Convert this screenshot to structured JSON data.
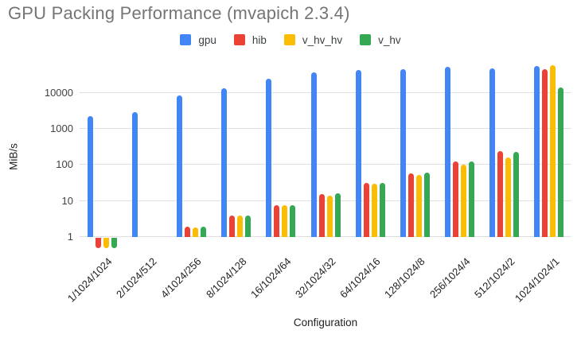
{
  "title": "GPU Packing Performance (mvapich 2.3.4)",
  "chart_data": {
    "type": "bar",
    "title": "GPU Packing Performance (mvapich 2.3.4)",
    "xlabel": "Configuration",
    "ylabel": "MiB/s",
    "y_scale": "log",
    "y_ticks": [
      1,
      10,
      100,
      1000,
      10000
    ],
    "ylim": [
      0.45,
      60000
    ],
    "grid": true,
    "legend_position": "top",
    "categories": [
      "1/1024/1024",
      "2/1024/512",
      "4/1024/256",
      "8/1024/128",
      "16/1024/64",
      "32/1024/32",
      "64/1024/16",
      "128/1024/8",
      "256/1024/4",
      "512/1024/2",
      "1024/1024/1"
    ],
    "series": [
      {
        "name": "gpu",
        "color": "#4285F4",
        "values": [
          2250,
          2800,
          8200,
          13000,
          24000,
          35000,
          42000,
          44000,
          50000,
          47000,
          53000
        ]
      },
      {
        "name": "hib",
        "color": "#EA4335",
        "values": [
          0.5,
          1,
          1.9,
          3.8,
          7.4,
          15,
          31,
          58,
          125,
          235,
          44000
        ]
      },
      {
        "name": "v_hv_hv",
        "color": "#FBBC04",
        "values": [
          0.5,
          1,
          1.85,
          3.9,
          7.4,
          14,
          29,
          52,
          98,
          160,
          55000
        ]
      },
      {
        "name": "v_hv",
        "color": "#34A853",
        "values": [
          0.5,
          1,
          1.95,
          3.8,
          7.5,
          16,
          31,
          60,
          125,
          225,
          13500
        ]
      }
    ]
  },
  "colors": {
    "title_text": "#757575",
    "axis_tick_text": "#424242",
    "axis_title_text": "#202124",
    "gridline": "#e0e0e0",
    "background": "#ffffff"
  }
}
